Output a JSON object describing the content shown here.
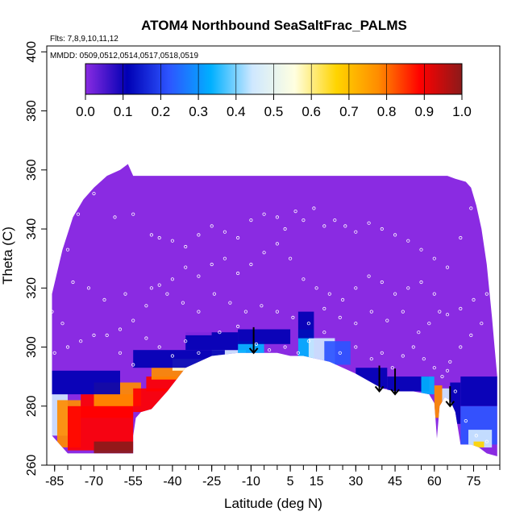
{
  "chart_data": {
    "type": "heatmap",
    "title": "ATOM4 Northbound SeaSaltFrac_PALMS",
    "annotations": [
      "Flts: 7,8,9,10,11,12",
      "MMDD: 0509,0512,0514,0517,0518,0519"
    ],
    "xlabel": "Latitude (deg N)",
    "ylabel": "Theta (C)",
    "xlim": [
      -88,
      85
    ],
    "ylim": [
      260,
      402
    ],
    "x_ticks": [
      "-85",
      "-70",
      "-55",
      "-40",
      "-25",
      "-10",
      "5",
      "15",
      "30",
      "45",
      "60",
      "75"
    ],
    "x_tick_values": [
      -85,
      -70,
      -55,
      -40,
      -25,
      -10,
      5,
      15,
      30,
      45,
      60,
      75
    ],
    "y_ticks": [
      "260",
      "280",
      "300",
      "320",
      "340",
      "360",
      "380",
      "400"
    ],
    "y_tick_values": [
      260,
      280,
      300,
      320,
      340,
      360,
      380,
      400
    ],
    "colorbar": {
      "ticks": [
        "0.0",
        "0.1",
        "0.2",
        "0.3",
        "0.4",
        "0.5",
        "0.6",
        "0.7",
        "0.8",
        "0.9",
        "1.0"
      ],
      "range": [
        0,
        1
      ],
      "colors": [
        "#8a2be2",
        "#0000b4",
        "#2d55ff",
        "#00b0ff",
        "#cfe8ff",
        "#ffffe0",
        "#ffd400",
        "#ff8c00",
        "#ff0000",
        "#8b1a1a"
      ]
    },
    "coverage": {
      "top": [
        [
          -86,
          318
        ],
        [
          -82,
          333
        ],
        [
          -78,
          344
        ],
        [
          -74,
          350
        ],
        [
          -70,
          354
        ],
        [
          -65,
          358
        ],
        [
          -60,
          360
        ],
        [
          -57,
          362
        ],
        [
          -55,
          358
        ],
        [
          -40,
          358
        ],
        [
          -20,
          358
        ],
        [
          0,
          358
        ],
        [
          20,
          358
        ],
        [
          40,
          358
        ],
        [
          60,
          358
        ],
        [
          65,
          358
        ],
        [
          68,
          357
        ],
        [
          72,
          356
        ],
        [
          74,
          354
        ],
        [
          76,
          348
        ],
        [
          78,
          340
        ],
        [
          80,
          328
        ],
        [
          82,
          310
        ],
        [
          83,
          300
        ],
        [
          84,
          290
        ],
        [
          84,
          263
        ]
      ],
      "bottom": [
        [
          84,
          263
        ],
        [
          80,
          264
        ],
        [
          77,
          266
        ],
        [
          74,
          267
        ],
        [
          70,
          267
        ],
        [
          68,
          278
        ],
        [
          66,
          282
        ],
        [
          64,
          283
        ],
        [
          62,
          280
        ],
        [
          61,
          269
        ],
        [
          60,
          281
        ],
        [
          58,
          284
        ],
        [
          52,
          285
        ],
        [
          45,
          285
        ],
        [
          40,
          286
        ],
        [
          30,
          291
        ],
        [
          20,
          295
        ],
        [
          10,
          297
        ],
        [
          5,
          297
        ],
        [
          0,
          298
        ],
        [
          -5,
          298
        ],
        [
          -15,
          298
        ],
        [
          -25,
          297
        ],
        [
          -35,
          293
        ],
        [
          -42,
          285
        ],
        [
          -48,
          279
        ],
        [
          -52,
          278
        ],
        [
          -54,
          276
        ],
        [
          -55,
          270
        ],
        [
          -55,
          264
        ],
        [
          -60,
          264
        ],
        [
          -70,
          264
        ],
        [
          -80,
          264
        ],
        [
          -86,
          270
        ]
      ]
    },
    "cells": [
      {
        "x": [
          -88,
          -80
        ],
        "y": [
          270,
          284
        ],
        "v": 0.45
      },
      {
        "x": [
          -84,
          -75
        ],
        "y": [
          266,
          282
        ],
        "v": 0.7
      },
      {
        "x": [
          -80,
          -55
        ],
        "y": [
          265,
          280
        ],
        "v": 0.88
      },
      {
        "x": [
          -70,
          -55
        ],
        "y": [
          264,
          268
        ],
        "v": 0.92
      },
      {
        "x": [
          -75,
          -55
        ],
        "y": [
          276,
          284
        ],
        "v": 0.8
      },
      {
        "x": [
          -70,
          -52
        ],
        "y": [
          280,
          288
        ],
        "v": 0.75
      },
      {
        "x": [
          -55,
          -40
        ],
        "y": [
          278,
          286
        ],
        "v": 0.88
      },
      {
        "x": [
          -50,
          -38
        ],
        "y": [
          285,
          290
        ],
        "v": 0.85
      },
      {
        "x": [
          -48,
          -30
        ],
        "y": [
          289,
          293
        ],
        "v": 0.72
      },
      {
        "x": [
          -40,
          -20
        ],
        "y": [
          292,
          296
        ],
        "v": 0.55
      },
      {
        "x": [
          -25,
          -12
        ],
        "y": [
          294,
          299
        ],
        "v": 0.45
      },
      {
        "x": [
          -15,
          -5
        ],
        "y": [
          296,
          302
        ],
        "v": 0.35
      },
      {
        "x": [
          -88,
          -60
        ],
        "y": [
          284,
          292
        ],
        "v": 0.15
      },
      {
        "x": [
          -55,
          -20
        ],
        "y": [
          293,
          299
        ],
        "v": 0.17
      },
      {
        "x": [
          -35,
          -15
        ],
        "y": [
          299,
          305
        ],
        "v": 0.1
      },
      {
        "x": [
          -40,
          -25
        ],
        "y": [
          304,
          310
        ],
        "v": 0.08
      },
      {
        "x": [
          -15,
          5
        ],
        "y": [
          301,
          306
        ],
        "v": 0.15
      },
      {
        "x": [
          8,
          14
        ],
        "y": [
          296,
          306
        ],
        "v": 0.3
      },
      {
        "x": [
          12,
          22
        ],
        "y": [
          293,
          303
        ],
        "v": 0.4
      },
      {
        "x": [
          18,
          28
        ],
        "y": [
          294,
          302
        ],
        "v": 0.2
      },
      {
        "x": [
          -5,
          5
        ],
        "y": [
          306,
          318
        ],
        "v": 0.07
      },
      {
        "x": [
          8,
          14
        ],
        "y": [
          303,
          312
        ],
        "v": 0.1
      },
      {
        "x": [
          30,
          42
        ],
        "y": [
          286,
          293
        ],
        "v": 0.15
      },
      {
        "x": [
          42,
          58
        ],
        "y": [
          285,
          290
        ],
        "v": 0.15
      },
      {
        "x": [
          55,
          60
        ],
        "y": [
          284,
          290
        ],
        "v": 0.35
      },
      {
        "x": [
          60,
          63
        ],
        "y": [
          276,
          287
        ],
        "v": 0.75
      },
      {
        "x": [
          63,
          66
        ],
        "y": [
          280,
          286
        ],
        "v": 0.45
      },
      {
        "x": [
          66,
          70
        ],
        "y": [
          274,
          288
        ],
        "v": 0.15
      },
      {
        "x": [
          70,
          84
        ],
        "y": [
          267,
          280
        ],
        "v": 0.2
      },
      {
        "x": [
          73,
          82
        ],
        "y": [
          266,
          272
        ],
        "v": 0.4
      },
      {
        "x": [
          75,
          79
        ],
        "y": [
          266,
          268
        ],
        "v": 0.6
      },
      {
        "x": [
          70,
          84
        ],
        "y": [
          280,
          290
        ],
        "v": 0.12
      }
    ],
    "arrows": [
      {
        "x": -9,
        "y_top": 304,
        "y_bottom": 298
      },
      {
        "x": 39,
        "y_top": 291,
        "y_bottom": 285
      },
      {
        "x": 45,
        "y_top": 290,
        "y_bottom": 284
      },
      {
        "x": 66,
        "y_top": 284,
        "y_bottom": 280
      }
    ],
    "samples": [
      [
        -85,
        330
      ],
      [
        -80,
        333
      ],
      [
        -76,
        345
      ],
      [
        -70,
        352
      ],
      [
        -62,
        344
      ],
      [
        -55,
        345
      ],
      [
        -48,
        338
      ],
      [
        -45,
        337
      ],
      [
        -40,
        336
      ],
      [
        -35,
        334
      ],
      [
        -30,
        338
      ],
      [
        -25,
        341
      ],
      [
        -20,
        339
      ],
      [
        -15,
        337
      ],
      [
        -10,
        343
      ],
      [
        -5,
        345
      ],
      [
        0,
        344
      ],
      [
        3,
        340
      ],
      [
        7,
        346
      ],
      [
        10,
        343
      ],
      [
        14,
        347
      ],
      [
        18,
        341
      ],
      [
        22,
        343
      ],
      [
        26,
        341
      ],
      [
        30,
        339
      ],
      [
        35,
        342
      ],
      [
        40,
        340
      ],
      [
        45,
        338
      ],
      [
        50,
        336
      ],
      [
        55,
        333
      ],
      [
        60,
        330
      ],
      [
        65,
        327
      ],
      [
        70,
        337
      ],
      [
        74,
        347
      ],
      [
        77,
        352
      ],
      [
        80,
        355
      ],
      [
        78,
        344
      ],
      [
        82,
        330
      ],
      [
        80,
        318
      ],
      [
        75,
        316
      ],
      [
        70,
        313
      ],
      [
        65,
        311
      ],
      [
        60,
        318
      ],
      [
        55,
        322
      ],
      [
        50,
        320
      ],
      [
        45,
        318
      ],
      [
        40,
        322
      ],
      [
        35,
        324
      ],
      [
        30,
        320
      ],
      [
        25,
        316
      ],
      [
        20,
        318
      ],
      [
        15,
        320
      ],
      [
        10,
        323
      ],
      [
        5,
        330
      ],
      [
        0,
        335
      ],
      [
        -5,
        332
      ],
      [
        -10,
        328
      ],
      [
        -15,
        325
      ],
      [
        -20,
        330
      ],
      [
        -25,
        328
      ],
      [
        -30,
        324
      ],
      [
        -35,
        327
      ],
      [
        -40,
        323
      ],
      [
        -45,
        321
      ],
      [
        -50,
        314
      ],
      [
        -55,
        309
      ],
      [
        -60,
        306
      ],
      [
        -65,
        304
      ],
      [
        -70,
        304
      ],
      [
        -75,
        302
      ],
      [
        -80,
        300
      ],
      [
        -85,
        298
      ],
      [
        -60,
        298
      ],
      [
        -55,
        294
      ],
      [
        -50,
        303
      ],
      [
        -45,
        300
      ],
      [
        -40,
        297
      ],
      [
        -35,
        302
      ],
      [
        -30,
        298
      ],
      [
        -22,
        305
      ],
      [
        -15,
        307
      ],
      [
        -8,
        301
      ],
      [
        -3,
        299
      ],
      [
        3,
        300
      ],
      [
        8,
        298
      ],
      [
        12,
        302
      ],
      [
        18,
        305
      ],
      [
        24,
        298
      ],
      [
        30,
        300
      ],
      [
        36,
        296
      ],
      [
        40,
        298
      ],
      [
        44,
        293
      ],
      [
        48,
        297
      ],
      [
        52,
        300
      ],
      [
        56,
        296
      ],
      [
        60,
        293
      ],
      [
        63,
        290
      ],
      [
        66,
        295
      ],
      [
        70,
        300
      ],
      [
        74,
        304
      ],
      [
        78,
        308
      ],
      [
        62,
        312
      ],
      [
        58,
        308
      ],
      [
        54,
        305
      ],
      [
        48,
        312
      ],
      [
        42,
        309
      ],
      [
        36,
        312
      ],
      [
        30,
        308
      ],
      [
        24,
        310
      ],
      [
        18,
        313
      ],
      [
        12,
        308
      ],
      [
        6,
        310
      ],
      [
        0,
        312
      ],
      [
        -6,
        314
      ],
      [
        -12,
        312
      ],
      [
        -18,
        315
      ],
      [
        -24,
        318
      ],
      [
        -30,
        312
      ],
      [
        -36,
        315
      ],
      [
        -42,
        318
      ],
      [
        -48,
        320
      ],
      [
        -58,
        318
      ],
      [
        -66,
        316
      ],
      [
        -72,
        320
      ],
      [
        -78,
        322
      ],
      [
        -82,
        308
      ],
      [
        -86,
        312
      ],
      [
        65,
        292
      ],
      [
        68,
        285
      ],
      [
        72,
        275
      ],
      [
        76,
        270
      ],
      [
        80,
        268
      ]
    ]
  }
}
